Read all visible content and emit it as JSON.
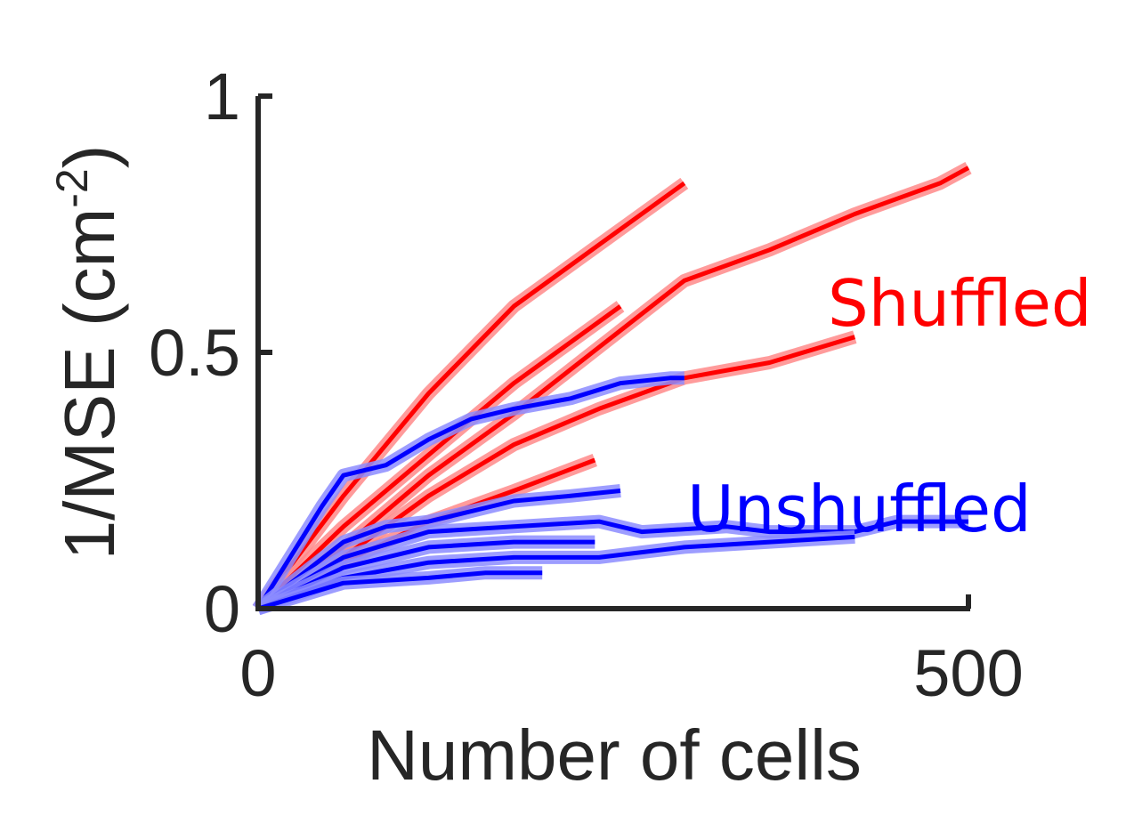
{
  "chart_data": {
    "type": "line",
    "xlabel": "Number of cells",
    "ylabel_main": "1/MSE (cm",
    "ylabel_sup": "-2",
    "ylabel_close": ")",
    "xlim": [
      0,
      500
    ],
    "ylim": [
      0,
      1
    ],
    "xticks": [
      0,
      500
    ],
    "xtick_labels": [
      "0",
      "500"
    ],
    "yticks": [
      0,
      0.5,
      1
    ],
    "ytick_labels": [
      "0",
      "0.5",
      "1"
    ],
    "grid": false,
    "legend": "none",
    "annotations": [
      {
        "text": "Shuffled",
        "color": "#ff0000"
      },
      {
        "text": "Unshuffled",
        "color": "#0000ff"
      }
    ],
    "series": [
      {
        "group": "shuffled",
        "color": "#ff0000",
        "band_color": "#ff8a8a",
        "x": [
          0,
          60,
          120,
          180,
          240,
          300
        ],
        "y": [
          0,
          0.22,
          0.42,
          0.59,
          0.71,
          0.83
        ]
      },
      {
        "group": "shuffled",
        "color": "#ff0000",
        "band_color": "#ff8a8a",
        "x": [
          0,
          60,
          120,
          180,
          240,
          300,
          360,
          420,
          480,
          500
        ],
        "y": [
          0,
          0.12,
          0.26,
          0.38,
          0.51,
          0.64,
          0.7,
          0.77,
          0.83,
          0.86
        ]
      },
      {
        "group": "shuffled",
        "color": "#ff0000",
        "band_color": "#ff8a8a",
        "x": [
          0,
          60,
          120,
          180,
          240,
          300,
          360,
          420
        ],
        "y": [
          0,
          0.1,
          0.22,
          0.32,
          0.39,
          0.45,
          0.48,
          0.53
        ]
      },
      {
        "group": "shuffled",
        "color": "#ff0000",
        "band_color": "#ff8a8a",
        "x": [
          0,
          60,
          120,
          180,
          255
        ],
        "y": [
          0,
          0.16,
          0.3,
          0.44,
          0.59
        ]
      },
      {
        "group": "shuffled",
        "color": "#ff0000",
        "band_color": "#ff8a8a",
        "x": [
          0,
          60,
          120,
          180,
          237
        ],
        "y": [
          0,
          0.09,
          0.17,
          0.23,
          0.29
        ]
      },
      {
        "group": "unshuffled",
        "color": "#0000ff",
        "band_color": "#8c8cff",
        "x": [
          0,
          45,
          60,
          90,
          120,
          150,
          180,
          220,
          255,
          290,
          300
        ],
        "y": [
          0,
          0.2,
          0.26,
          0.28,
          0.33,
          0.37,
          0.39,
          0.41,
          0.44,
          0.45,
          0.45
        ]
      },
      {
        "group": "unshuffled",
        "color": "#0000ff",
        "band_color": "#8c8cff",
        "x": [
          0,
          60,
          90,
          120,
          150,
          180,
          220,
          255
        ],
        "y": [
          0,
          0.13,
          0.16,
          0.17,
          0.19,
          0.21,
          0.22,
          0.23
        ]
      },
      {
        "group": "unshuffled",
        "color": "#0000ff",
        "band_color": "#8c8cff",
        "x": [
          0,
          60,
          120,
          180,
          240,
          270,
          330,
          360,
          420,
          450,
          500
        ],
        "y": [
          0,
          0.1,
          0.15,
          0.16,
          0.17,
          0.15,
          0.16,
          0.15,
          0.15,
          0.17,
          0.17
        ]
      },
      {
        "group": "unshuffled",
        "color": "#0000ff",
        "band_color": "#8c8cff",
        "x": [
          0,
          60,
          120,
          180,
          237
        ],
        "y": [
          0,
          0.08,
          0.12,
          0.13,
          0.13
        ]
      },
      {
        "group": "unshuffled",
        "color": "#0000ff",
        "band_color": "#8c8cff",
        "x": [
          0,
          60,
          120,
          180,
          240,
          270,
          300,
          360,
          420
        ],
        "y": [
          0,
          0.06,
          0.09,
          0.1,
          0.1,
          0.11,
          0.12,
          0.13,
          0.14
        ]
      },
      {
        "group": "unshuffled",
        "color": "#0000ff",
        "band_color": "#8c8cff",
        "x": [
          0,
          60,
          120,
          160,
          200
        ],
        "y": [
          0,
          0.05,
          0.06,
          0.07,
          0.07
        ]
      }
    ]
  }
}
